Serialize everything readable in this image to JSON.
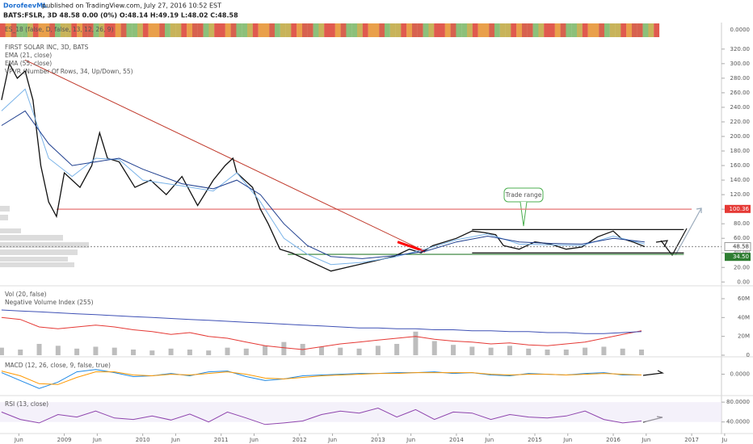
{
  "header": {
    "author": "DorofeevML",
    "published": "published on TradingView.com, July 27, 2016 10:52 EST",
    "quote": "BATS:FSLR, 3D 48.58 0.00 (0%) O:48.14 H:49.19 L:48.02 C:48.58"
  },
  "es_panel": {
    "title": "ES_18 (false, D, false, 13, 12, 26, 9)",
    "tick_label": "0.0000"
  },
  "chart_data": [
    {
      "type": "line",
      "title": "FIRST SOLAR INC, 3D, BATS",
      "annotation": "VPVR (Number Of Rows, 34, Up/Down, 55)",
      "callout": "Trade range",
      "xlim": [
        2008.18,
        2017.38
      ],
      "xticks": [
        {
          "value": 2008.42,
          "label": "Jun"
        },
        {
          "value": 2009,
          "label": "2009"
        },
        {
          "value": 2009.42,
          "label": "Jun"
        },
        {
          "value": 2010,
          "label": "2010"
        },
        {
          "value": 2010.42,
          "label": "Jun"
        },
        {
          "value": 2011,
          "label": "2011"
        },
        {
          "value": 2011.42,
          "label": "Jun"
        },
        {
          "value": 2012,
          "label": "2012"
        },
        {
          "value": 2012.42,
          "label": "Jun"
        },
        {
          "value": 2013,
          "label": "2013"
        },
        {
          "value": 2013.42,
          "label": "Jun"
        },
        {
          "value": 2014,
          "label": "2014"
        },
        {
          "value": 2014.42,
          "label": "Jun"
        },
        {
          "value": 2015,
          "label": "2015"
        },
        {
          "value": 2015.42,
          "label": "Jun"
        },
        {
          "value": 2016,
          "label": "2016"
        },
        {
          "value": 2016.42,
          "label": "Jun"
        },
        {
          "value": 2017,
          "label": "2017"
        },
        {
          "value": 2017.42,
          "label": "Ju"
        }
      ],
      "ylim": [
        -3,
        332
      ],
      "yticks": [
        {
          "value": 0,
          "label": "0.00"
        },
        {
          "value": 20,
          "label": "20.00"
        },
        {
          "value": 40,
          "label": "40.00"
        },
        {
          "value": 60,
          "label": "60.00"
        },
        {
          "value": 80,
          "label": "80.00"
        },
        {
          "value": 100,
          "label": "100.00"
        },
        {
          "value": 120,
          "label": "120.00"
        },
        {
          "value": 140,
          "label": "140.00"
        },
        {
          "value": 160,
          "label": "160.00"
        },
        {
          "value": 180,
          "label": "180.00"
        },
        {
          "value": 200,
          "label": "200.00"
        },
        {
          "value": 220,
          "label": "220.00"
        },
        {
          "value": 240,
          "label": "240.00"
        },
        {
          "value": 260,
          "label": "260.00"
        },
        {
          "value": 280,
          "label": "280.00"
        },
        {
          "value": 300,
          "label": "300.00"
        },
        {
          "value": 320,
          "label": "320.00"
        }
      ],
      "price_labels": [
        {
          "value": 100.36,
          "label": "100.36",
          "color": "#e53935"
        },
        {
          "value": 48.58,
          "label": "48.58",
          "color": "#ffffff"
        },
        {
          "value": 34.5,
          "label": "34.50",
          "color": "#2e7d32"
        }
      ],
      "series": [
        {
          "color": "#111111",
          "x": [
            2008.2,
            2008.3,
            2008.4,
            2008.5,
            2008.6,
            2008.7,
            2008.8,
            2008.9,
            2009.0,
            2009.2,
            2009.35,
            2009.45,
            2009.55,
            2009.7,
            2009.9,
            2010.1,
            2010.3,
            2010.5,
            2010.7,
            2010.9,
            2011.05,
            2011.15,
            2011.2,
            2011.4,
            2011.5,
            2011.6,
            2011.75,
            2011.9,
            2012.0,
            2012.2,
            2012.4,
            2012.6,
            2012.8,
            2013.0,
            2013.2,
            2013.4,
            2013.55,
            2013.7,
            2013.85,
            2014.0,
            2014.2,
            2014.35,
            2014.5,
            2014.6,
            2014.8,
            2015.0,
            2015.2,
            2015.4,
            2015.6,
            2015.8,
            2016.0,
            2016.1,
            2016.25,
            2016.4
          ],
          "values": [
            250,
            300,
            280,
            290,
            250,
            160,
            110,
            90,
            150,
            130,
            160,
            205,
            170,
            165,
            130,
            140,
            120,
            145,
            105,
            140,
            160,
            170,
            150,
            130,
            100,
            80,
            45,
            40,
            35,
            25,
            15,
            20,
            25,
            30,
            35,
            45,
            40,
            50,
            55,
            60,
            70,
            68,
            65,
            50,
            45,
            55,
            52,
            45,
            48,
            62,
            70,
            60,
            55,
            48.58
          ]
        },
        {
          "name": "EMA (21, close)",
          "color": "#7ab3e8",
          "x": [
            2008.2,
            2008.5,
            2008.8,
            2009.1,
            2009.4,
            2009.7,
            2010.0,
            2010.5,
            2010.9,
            2011.2,
            2011.5,
            2011.8,
            2012.1,
            2012.4,
            2012.8,
            2013.2,
            2013.6,
            2014.0,
            2014.4,
            2014.8,
            2015.2,
            2015.6,
            2016.0,
            2016.4
          ],
          "values": [
            235,
            265,
            170,
            145,
            170,
            168,
            140,
            132,
            125,
            150,
            110,
            60,
            38,
            24,
            27,
            34,
            45,
            58,
            66,
            52,
            51,
            50,
            63,
            52
          ]
        },
        {
          "name": "EMA (55, close)",
          "color": "#1f3f8f",
          "x": [
            2008.2,
            2008.5,
            2008.8,
            2009.1,
            2009.4,
            2009.7,
            2010.0,
            2010.5,
            2010.9,
            2011.2,
            2011.5,
            2011.8,
            2012.1,
            2012.4,
            2012.8,
            2013.2,
            2013.6,
            2014.0,
            2014.4,
            2014.8,
            2015.2,
            2015.6,
            2016.0,
            2016.4
          ],
          "values": [
            215,
            235,
            190,
            160,
            165,
            170,
            155,
            135,
            128,
            140,
            120,
            80,
            50,
            35,
            32,
            36,
            42,
            55,
            63,
            55,
            53,
            52,
            60,
            55
          ]
        }
      ],
      "hlines": [
        {
          "y": 100,
          "x": [
            2008.9,
            2017.0
          ],
          "color": "#e57373"
        },
        {
          "y": 38,
          "x": [
            2011.85,
            2016.9
          ],
          "color": "#2e7d32"
        },
        {
          "y": 72,
          "x": [
            2014.2,
            2016.9
          ],
          "color": "#111111"
        },
        {
          "y": 40,
          "x": [
            2014.2,
            2016.9
          ],
          "color": "#111111"
        },
        {
          "y": 48.58,
          "x": [
            2008.18,
            2017.38
          ],
          "color": "#999999",
          "dash": true
        }
      ],
      "trendlines": [
        {
          "x": [
            2008.5,
            2013.6
          ],
          "y": [
            305,
            42
          ],
          "color": "#c0392b"
        },
        {
          "x": [
            2013.25,
            2013.6
          ],
          "y": [
            55,
            42
          ],
          "color": "#ff0000"
        }
      ]
    },
    {
      "type": "bar",
      "title": "Vol (20, false)",
      "color": "#bdbdbd",
      "ylim": [
        0,
        72000000
      ],
      "yticks": [
        {
          "value": 0,
          "label": "0"
        },
        {
          "value": 20000000,
          "label": "20M"
        },
        {
          "value": 40000000,
          "label": "40M"
        },
        {
          "value": 60000000,
          "label": "60M"
        }
      ],
      "x": [
        2008.2,
        2008.44,
        2008.68,
        2008.92,
        2009.16,
        2009.4,
        2009.64,
        2009.88,
        2010.12,
        2010.36,
        2010.6,
        2010.84,
        2011.08,
        2011.32,
        2011.56,
        2011.8,
        2012.04,
        2012.28,
        2012.52,
        2012.76,
        2013.0,
        2013.24,
        2013.48,
        2013.72,
        2013.96,
        2014.2,
        2014.44,
        2014.68,
        2014.92,
        2015.16,
        2015.4,
        2015.64,
        2015.88,
        2016.12,
        2016.36
      ],
      "values": [
        8000000,
        6000000,
        12000000,
        10000000,
        7000000,
        9000000,
        8000000,
        6000000,
        5000000,
        7000000,
        6000000,
        5000000,
        8000000,
        7000000,
        10000000,
        14000000,
        12000000,
        9000000,
        8000000,
        7000000,
        10000000,
        12000000,
        25000000,
        15000000,
        11000000,
        9000000,
        8000000,
        10000000,
        7000000,
        6000000,
        6000000,
        8000000,
        9000000,
        7000000,
        6000000
      ],
      "series": [
        {
          "color": "#e53935",
          "values": [
            40000000,
            38000000,
            30000000,
            28000000,
            30000000,
            32000000,
            30000000,
            27000000,
            25000000,
            22000000,
            24000000,
            20000000,
            18000000,
            14000000,
            10000000,
            8000000,
            6000000,
            9000000,
            12000000,
            14000000,
            16000000,
            18000000,
            20000000,
            17000000,
            15000000,
            14000000,
            12000000,
            13000000,
            11000000,
            10000000,
            12000000,
            14000000,
            18000000,
            22000000,
            26000000
          ]
        },
        {
          "name": "Negative Volume Index (255)",
          "color": "#3f51b5",
          "values": [
            48000000,
            47000000,
            46000000,
            45000000,
            44000000,
            43000000,
            42000000,
            41000000,
            40000000,
            39000000,
            38000000,
            37000000,
            36000000,
            35000000,
            34000000,
            33000000,
            32000000,
            31000000,
            30000000,
            29000000,
            29000000,
            28000000,
            28000000,
            27000000,
            27000000,
            26000000,
            26000000,
            25000000,
            25000000,
            24000000,
            24000000,
            23000000,
            23000000,
            24000000,
            25000000
          ]
        }
      ]
    },
    {
      "type": "line",
      "title": "MACD (12, 26, close, 9, false, true)",
      "ylim": [
        -25,
        20
      ],
      "yticks": [
        {
          "value": 0,
          "label": "0.0000"
        }
      ],
      "x": [
        2008.2,
        2008.44,
        2008.68,
        2008.92,
        2009.16,
        2009.4,
        2009.64,
        2009.88,
        2010.12,
        2010.36,
        2010.6,
        2010.84,
        2011.08,
        2011.32,
        2011.56,
        2011.8,
        2012.04,
        2012.28,
        2012.52,
        2012.76,
        2013.0,
        2013.24,
        2013.48,
        2013.72,
        2013.96,
        2014.2,
        2014.44,
        2014.68,
        2014.92,
        2015.16,
        2015.4,
        2015.64,
        2015.88,
        2016.12,
        2016.36
      ],
      "series": [
        {
          "color": "#1e88e5",
          "values": [
            2,
            -8,
            -18,
            -10,
            3,
            6,
            2,
            -3,
            -2,
            1,
            -2,
            3,
            4,
            -3,
            -8,
            -6,
            -2,
            -1,
            0,
            1,
            1,
            2,
            2,
            3,
            1,
            2,
            -1,
            -2,
            1,
            0,
            -1,
            1,
            2,
            -1,
            -1
          ]
        },
        {
          "color": "#ff9800",
          "values": [
            4,
            -2,
            -12,
            -13,
            -4,
            3,
            3,
            -1,
            -2,
            0,
            -1,
            1,
            3,
            0,
            -5,
            -6,
            -4,
            -2,
            -1,
            0,
            1,
            1,
            2,
            2,
            2,
            2,
            0,
            -1,
            0,
            0,
            -1,
            0,
            1,
            0,
            -1
          ]
        }
      ]
    },
    {
      "type": "line",
      "title": "RSI (13, close)",
      "ylim": [
        20,
        90
      ],
      "yticks": [
        {
          "value": 80,
          "label": "80.0000"
        },
        {
          "value": 40,
          "label": "40.0000"
        }
      ],
      "x": [
        2008.2,
        2008.44,
        2008.68,
        2008.92,
        2009.16,
        2009.4,
        2009.64,
        2009.88,
        2010.12,
        2010.36,
        2010.6,
        2010.84,
        2011.08,
        2011.32,
        2011.56,
        2011.8,
        2012.04,
        2012.28,
        2012.52,
        2012.76,
        2013.0,
        2013.24,
        2013.48,
        2013.72,
        2013.96,
        2014.2,
        2014.44,
        2014.68,
        2014.92,
        2015.16,
        2015.4,
        2015.64,
        2015.88,
        2016.12,
        2016.36
      ],
      "series": [
        {
          "color": "#8e44ad",
          "values": [
            60,
            45,
            38,
            55,
            50,
            62,
            48,
            45,
            52,
            44,
            56,
            40,
            60,
            48,
            35,
            38,
            42,
            55,
            62,
            58,
            68,
            50,
            65,
            45,
            60,
            58,
            45,
            55,
            50,
            48,
            52,
            62,
            45,
            38,
            42
          ]
        }
      ]
    }
  ]
}
